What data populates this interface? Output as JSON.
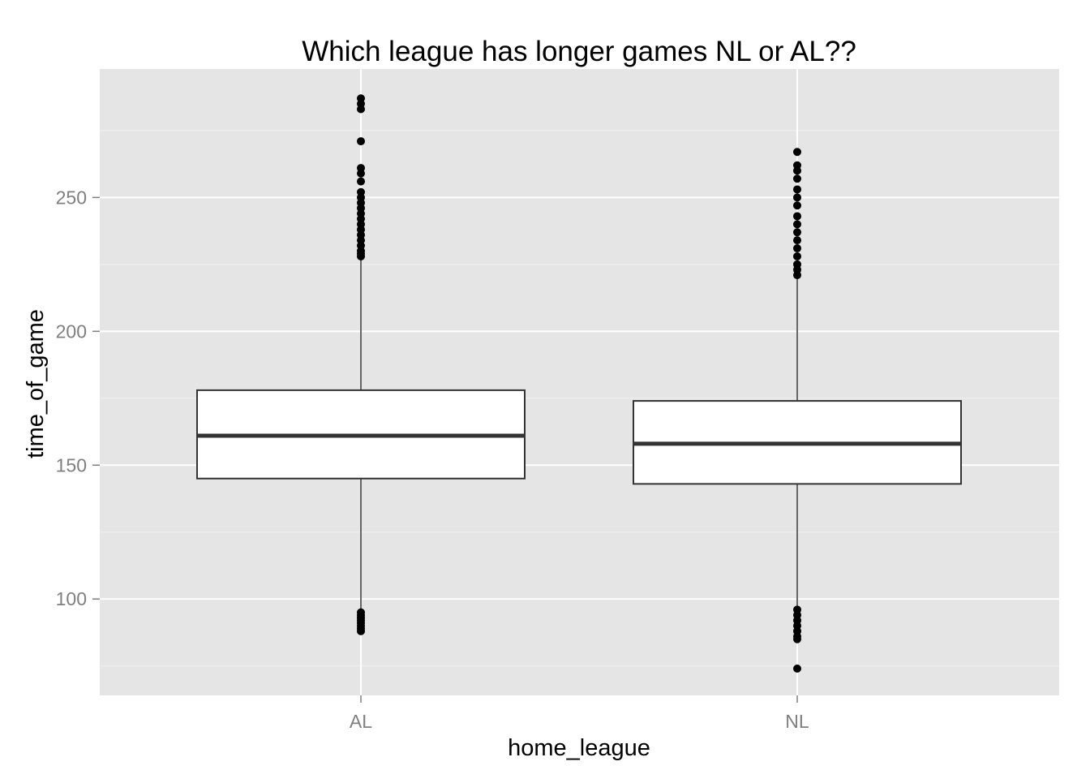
{
  "chart_data": {
    "type": "box",
    "title": "Which league has longer games NL or AL??",
    "xlabel": "home_league",
    "ylabel": "time_of_game",
    "categories": [
      "AL",
      "NL"
    ],
    "y_ticks": [
      100,
      150,
      200,
      250
    ],
    "ylim": [
      64,
      298
    ],
    "grid": true,
    "boxes": [
      {
        "category": "AL",
        "whisker_low": 96,
        "q1": 145,
        "median": 161,
        "q3": 178,
        "whisker_high": 227,
        "outliers": [
          88,
          89,
          90,
          91,
          92,
          93,
          94,
          95,
          228,
          229,
          230,
          232,
          234,
          236,
          238,
          240,
          242,
          244,
          246,
          248,
          250,
          252,
          256,
          259,
          261,
          271,
          283,
          285,
          287
        ]
      },
      {
        "category": "NL",
        "whisker_low": 97,
        "q1": 143,
        "median": 158,
        "q3": 174,
        "whisker_high": 220,
        "outliers": [
          74,
          85,
          86,
          88,
          90,
          92,
          94,
          96,
          221,
          223,
          225,
          228,
          231,
          234,
          237,
          240,
          243,
          247,
          250,
          253,
          257,
          260,
          262,
          267
        ]
      }
    ]
  }
}
